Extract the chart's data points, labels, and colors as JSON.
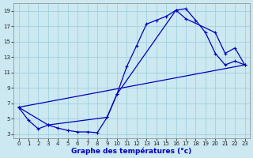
{
  "xlabel": "Graphe des températures (°c)",
  "bg_color": "#cce8f0",
  "grid_color": "#99ccdd",
  "line_color": "#0000bb",
  "xmin": -0.5,
  "xmax": 23.5,
  "ymin": 2.5,
  "ymax": 20.0,
  "yticks": [
    3,
    5,
    7,
    9,
    11,
    13,
    15,
    17,
    19
  ],
  "xticks": [
    0,
    1,
    2,
    3,
    4,
    5,
    6,
    7,
    8,
    9,
    10,
    11,
    12,
    13,
    14,
    15,
    16,
    17,
    18,
    19,
    20,
    21,
    22,
    23
  ],
  "line1_x": [
    0,
    1,
    2,
    3,
    4,
    5,
    6,
    7,
    8,
    9,
    10,
    11,
    12,
    13,
    14,
    15,
    16,
    17,
    18,
    19,
    20,
    21,
    22,
    23
  ],
  "line1_y": [
    6.5,
    4.8,
    3.7,
    4.2,
    3.8,
    3.5,
    3.3,
    3.3,
    3.2,
    5.2,
    8.2,
    11.8,
    14.5,
    17.3,
    17.8,
    18.3,
    19.1,
    19.3,
    17.8,
    16.2,
    13.5,
    12.0,
    12.5,
    12.0
  ],
  "line2_x": [
    0,
    3,
    9,
    10,
    16,
    17,
    20,
    21,
    22,
    23
  ],
  "line2_y": [
    6.5,
    4.2,
    5.2,
    8.2,
    19.1,
    18.0,
    16.2,
    13.5,
    14.2,
    12.0
  ],
  "line3_x": [
    0,
    23
  ],
  "line3_y": [
    6.5,
    12.0
  ]
}
